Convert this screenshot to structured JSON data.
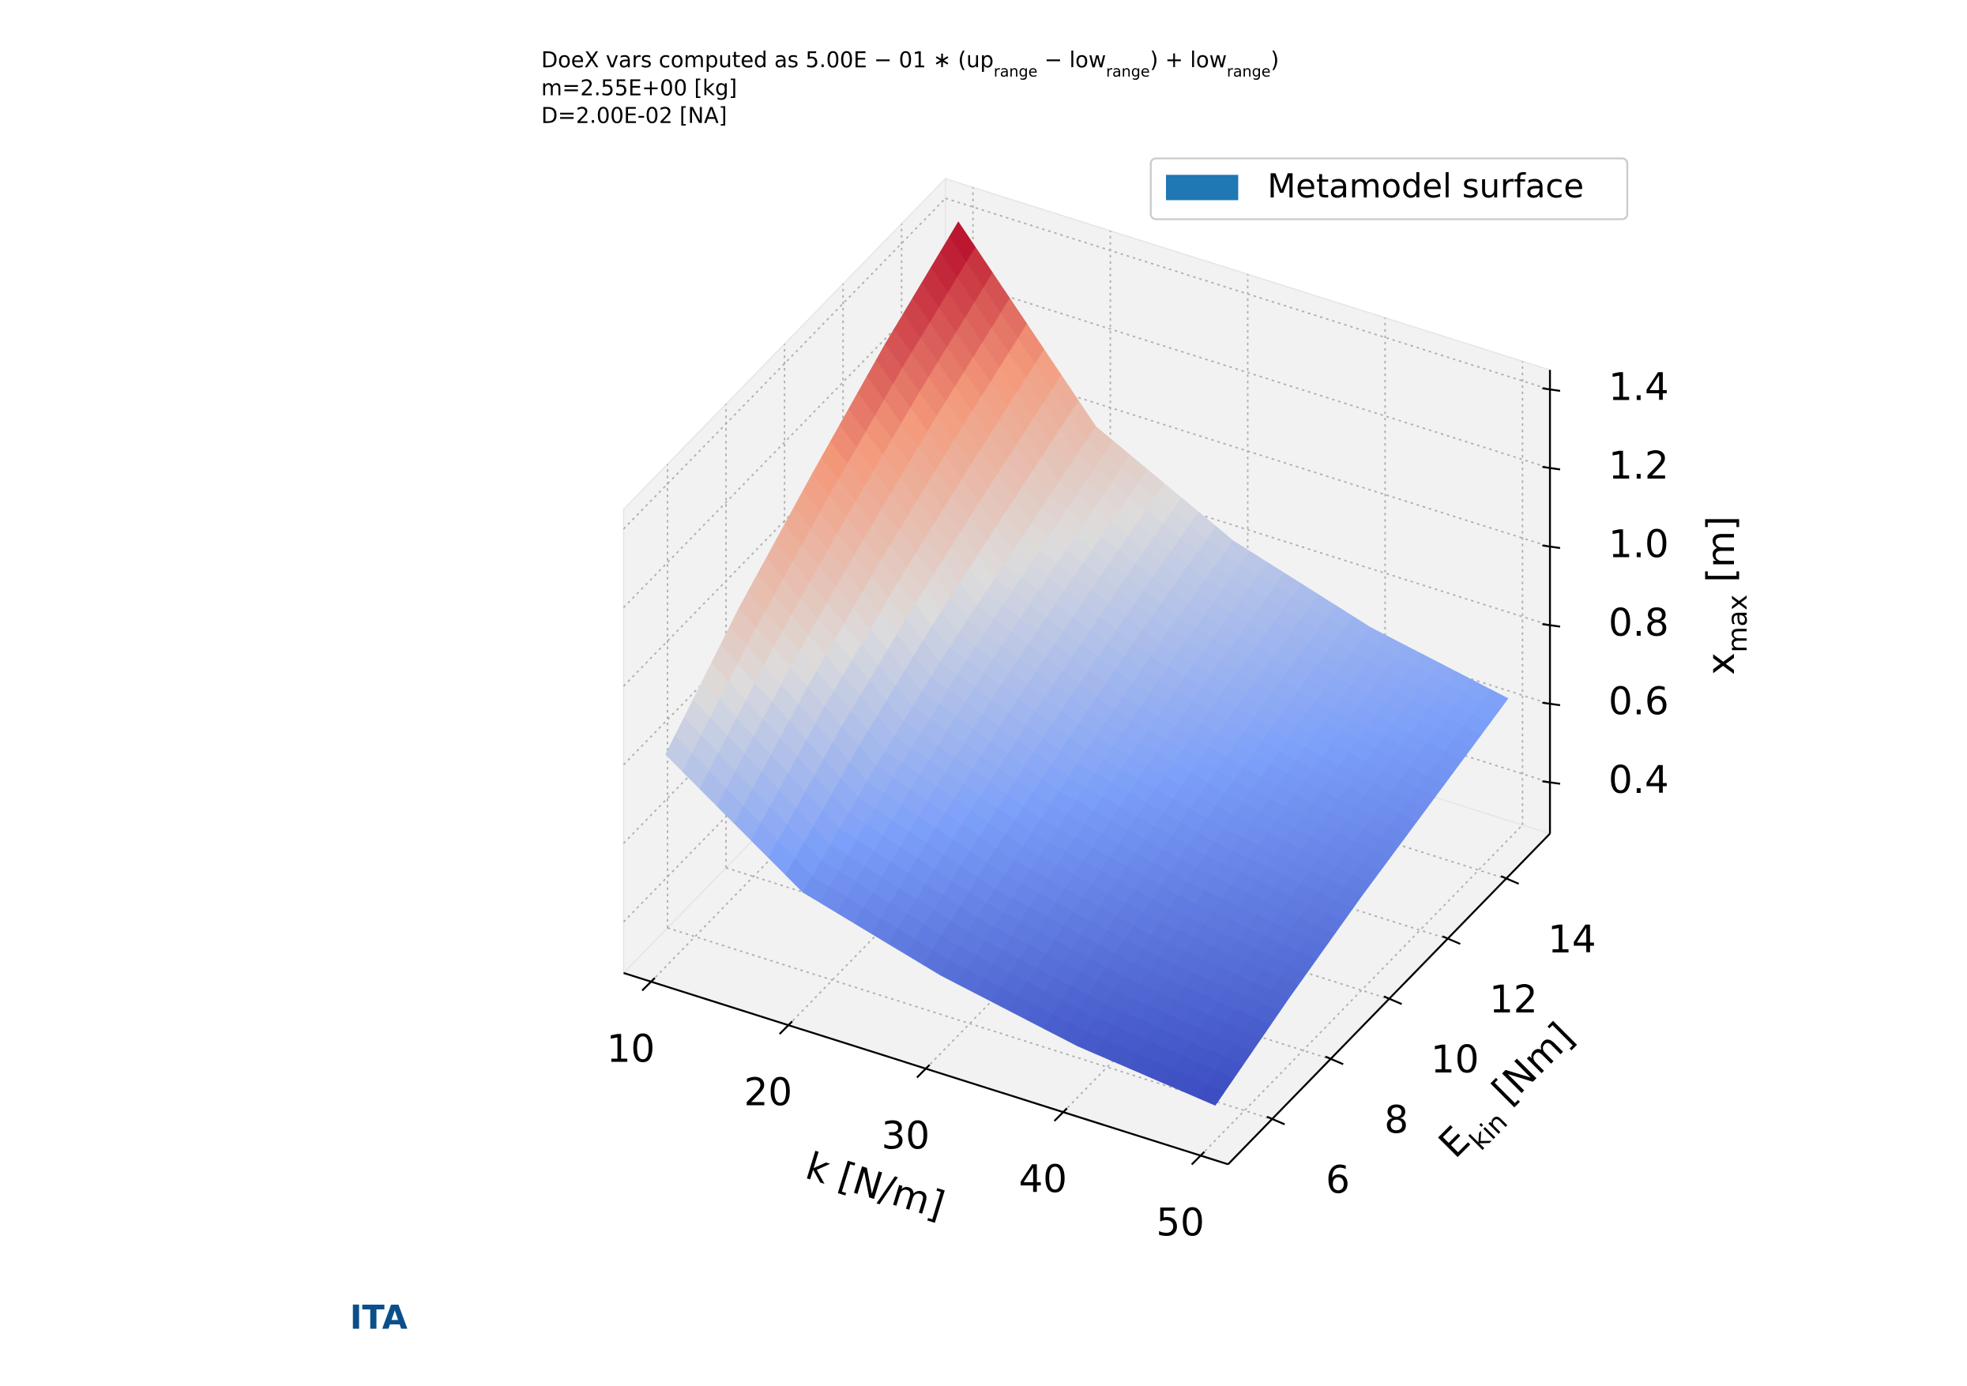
{
  "chart_data": {
    "type": "surface",
    "annotations": [
      [
        {
          "text": "DoeX vars computed as 5.00E − 01 ∗ (up"
        },
        {
          "text": "range",
          "sub": true
        },
        {
          "text": " − low"
        },
        {
          "text": "range",
          "sub": true
        },
        {
          "text": ") + low"
        },
        {
          "text": "range",
          "sub": true
        },
        {
          "text": ")"
        }
      ],
      [
        {
          "text": "m=2.55E+00 [kg]"
        }
      ],
      [
        {
          "text": "D=2.00E-02 [NA]"
        }
      ]
    ],
    "xlabel": [
      {
        "text": "k [N/m]"
      }
    ],
    "ylabel": [
      {
        "text": "E"
      },
      {
        "text": "kin",
        "sub": true
      },
      {
        "text": " [Nm]"
      }
    ],
    "zlabel": [
      {
        "text": "x"
      },
      {
        "text": "max",
        "sub": true
      },
      {
        "text": " [m]"
      }
    ],
    "x": [
      10,
      20,
      30,
      40,
      50
    ],
    "y": [
      5,
      7.5,
      10,
      12.5,
      15
    ],
    "series": [
      {
        "name": "Metamodel surface",
        "color": "#1f77b4",
        "colormap": "coolwarm",
        "z": [
          [
            0.81,
            0.57,
            0.47,
            0.4,
            0.36
          ],
          [
            0.99,
            0.7,
            0.57,
            0.49,
            0.44
          ],
          [
            1.14,
            0.81,
            0.66,
            0.57,
            0.51
          ],
          [
            1.28,
            0.9,
            0.74,
            0.64,
            0.57
          ],
          [
            1.4,
            0.99,
            0.81,
            0.7,
            0.63
          ]
        ]
      }
    ],
    "xlim": [
      8,
      52
    ],
    "ylim": [
      4.5,
      15.5
    ],
    "zlim": [
      0.27,
      1.45
    ],
    "xticks": [
      10,
      20,
      30,
      40,
      50
    ],
    "yticks": [
      6,
      8,
      10,
      12,
      14
    ],
    "zticks": [
      0.4,
      0.6,
      0.8,
      {
        "value": 1,
        "label": "1.0"
      },
      1.2,
      1.4
    ],
    "grid": true,
    "legend": "upper right",
    "logo": "ITA"
  }
}
